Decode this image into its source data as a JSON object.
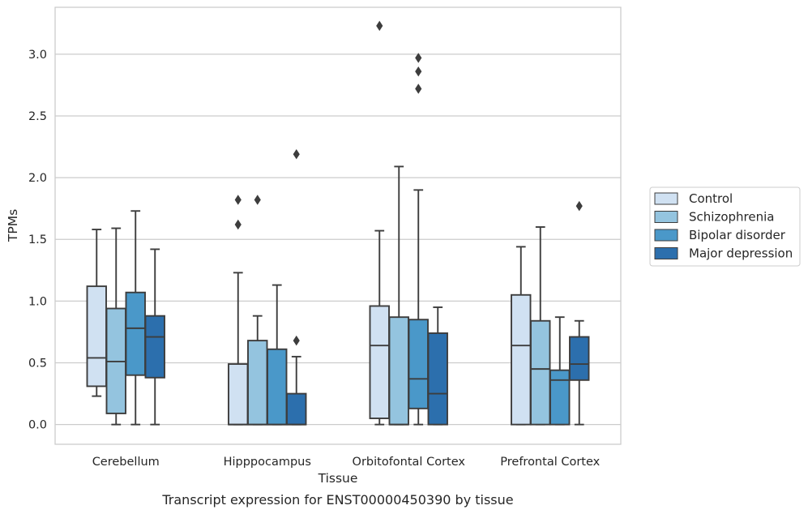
{
  "chart_data": {
    "type": "box",
    "caption": "Transcript expression for ENST00000450390 by tissue",
    "xlabel": "Tissue",
    "ylabel": "TPMs",
    "ylim": [
      -0.16,
      3.38
    ],
    "yticks": [
      0.0,
      0.5,
      1.0,
      1.5,
      2.0,
      2.5,
      3.0
    ],
    "ytick_labels": [
      "0.0",
      "0.5",
      "1.0",
      "1.5",
      "2.0",
      "2.5",
      "3.0"
    ],
    "grid": "horizontal",
    "legend_position": "right",
    "categories": [
      "Cerebellum",
      "Hipppocampus",
      "Orbitofontal Cortex",
      "Prefrontal Cortex"
    ],
    "series": [
      {
        "name": "Control",
        "color": "#d0e1f2",
        "boxes": [
          {
            "whislo": 0.23,
            "q1": 0.31,
            "med": 0.54,
            "q3": 1.12,
            "whishi": 1.58,
            "fliers": []
          },
          {
            "whislo": 0.0,
            "q1": 0.0,
            "med": 0.0,
            "q3": 0.49,
            "whishi": 1.23,
            "fliers": [
              1.62,
              1.82
            ]
          },
          {
            "whislo": 0.0,
            "q1": 0.05,
            "med": 0.64,
            "q3": 0.96,
            "whishi": 1.57,
            "fliers": [
              3.23
            ]
          },
          {
            "whislo": 0.0,
            "q1": 0.0,
            "med": 0.64,
            "q3": 1.05,
            "whishi": 1.44,
            "fliers": []
          }
        ]
      },
      {
        "name": "Schizophrenia",
        "color": "#94c4df",
        "boxes": [
          {
            "whislo": 0.0,
            "q1": 0.09,
            "med": 0.51,
            "q3": 0.94,
            "whishi": 1.59,
            "fliers": []
          },
          {
            "whislo": 0.0,
            "q1": 0.0,
            "med": 0.0,
            "q3": 0.68,
            "whishi": 0.88,
            "fliers": [
              1.82
            ]
          },
          {
            "whislo": 0.0,
            "q1": 0.0,
            "med": 0.0,
            "q3": 0.87,
            "whishi": 2.09,
            "fliers": []
          },
          {
            "whislo": 0.0,
            "q1": 0.0,
            "med": 0.45,
            "q3": 0.84,
            "whishi": 1.6,
            "fliers": []
          }
        ]
      },
      {
        "name": "Bipolar disorder",
        "color": "#4a98c9",
        "boxes": [
          {
            "whislo": 0.0,
            "q1": 0.4,
            "med": 0.78,
            "q3": 1.07,
            "whishi": 1.73,
            "fliers": []
          },
          {
            "whislo": 0.0,
            "q1": 0.0,
            "med": 0.0,
            "q3": 0.61,
            "whishi": 1.13,
            "fliers": []
          },
          {
            "whislo": 0.0,
            "q1": 0.13,
            "med": 0.37,
            "q3": 0.85,
            "whishi": 1.9,
            "fliers": [
              2.72,
              2.86,
              2.97
            ]
          },
          {
            "whislo": 0.0,
            "q1": 0.0,
            "med": 0.36,
            "q3": 0.44,
            "whishi": 0.87,
            "fliers": []
          }
        ]
      },
      {
        "name": "Major depression",
        "color": "#2c6fad",
        "boxes": [
          {
            "whislo": 0.0,
            "q1": 0.38,
            "med": 0.71,
            "q3": 0.88,
            "whishi": 1.42,
            "fliers": []
          },
          {
            "whislo": 0.0,
            "q1": 0.0,
            "med": 0.0,
            "q3": 0.25,
            "whishi": 0.55,
            "fliers": [
              0.68,
              2.19
            ]
          },
          {
            "whislo": 0.0,
            "q1": 0.0,
            "med": 0.25,
            "q3": 0.74,
            "whishi": 0.95,
            "fliers": []
          },
          {
            "whislo": 0.0,
            "q1": 0.36,
            "med": 0.49,
            "q3": 0.71,
            "whishi": 0.84,
            "fliers": [
              1.77
            ]
          }
        ]
      }
    ],
    "colors": {
      "box_edge": "#3d3d3d",
      "grid": "#cccccc",
      "frame": "#cccccc"
    }
  }
}
